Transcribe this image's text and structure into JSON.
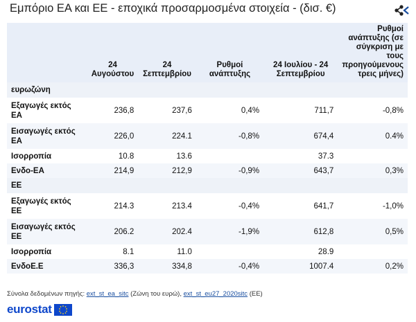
{
  "title": "Εμπόριο ΕΑ και ΕΕ - εποχικά προσαρμοσμένα στοιχεία - (δισ. €)",
  "columns": [
    "",
    "24 Αυγούστου",
    "24 Σεπτεμβρίου",
    "Ρυθμοί ανάπτυξης",
    "24 Ιουλίου - 24 Σεπτεμβρίου",
    "Ρυθμοί ανάπτυξης (σε σύγκριση με τους προηγούμενους τρεις μήνες)"
  ],
  "sections": [
    {
      "name": "ευρωζώνη",
      "rows": [
        {
          "label": "Εξαγωγές εκτός ΕΑ",
          "aug": "236,8",
          "sep": "237,6",
          "growth": "0,4%",
          "period": "711,7",
          "growth3m": "-0,8%"
        },
        {
          "label": "Εισαγωγές εκτός ΕΑ",
          "aug": "226,0",
          "sep": "224.1",
          "growth": "-0,8%",
          "period": "674,4",
          "growth3m": "0.4%"
        },
        {
          "label": "Ισορροπία",
          "aug": "10.8",
          "sep": "13.6",
          "growth": "",
          "period": "37.3",
          "growth3m": ""
        },
        {
          "label": "Ενδο-ΕΑ",
          "aug": "214,9",
          "sep": "212,9",
          "growth": "-0,9%",
          "period": "643,7",
          "growth3m": "0,3%"
        }
      ]
    },
    {
      "name": "ΕΕ",
      "rows": [
        {
          "label": "Εξαγωγές εκτός ΕΕ",
          "aug": "214.3",
          "sep": "213.4",
          "growth": "-0,4%",
          "period": "641,7",
          "growth3m": "-1,0%"
        },
        {
          "label": "Εισαγωγές εκτός ΕΕ",
          "aug": "206.2",
          "sep": "202.4",
          "growth": "-1,9%",
          "period": "612,8",
          "growth3m": "0,5%"
        },
        {
          "label": "Ισορροπία",
          "aug": "8.1",
          "sep": "11.0",
          "growth": "",
          "period": "28.9",
          "growth3m": ""
        },
        {
          "label": "ΕνδοΕ.Ε",
          "aug": "336,3",
          "sep": "334,8",
          "growth": "-0,4%",
          "period": "1007.4",
          "growth3m": "0,2%"
        }
      ]
    }
  ],
  "sources": {
    "prefix": "Σύνολα δεδομένων πηγής:",
    "link1": "ext_st_ea_sitc",
    "note1": "(Ζώνη του ευρώ),",
    "link2": "ext_st_eu27_2020sitc",
    "note2": "(ΕΕ)"
  },
  "logo": "eurostat",
  "colors": {
    "header_bg": "#e8eef8",
    "row_alt": "#f3f6fb",
    "link": "#1a4fa0",
    "brand": "#0e47cb",
    "share_icon": "#1a4fa0"
  },
  "icons": {
    "share": "share-icon",
    "flag": "eu-flag-icon"
  }
}
